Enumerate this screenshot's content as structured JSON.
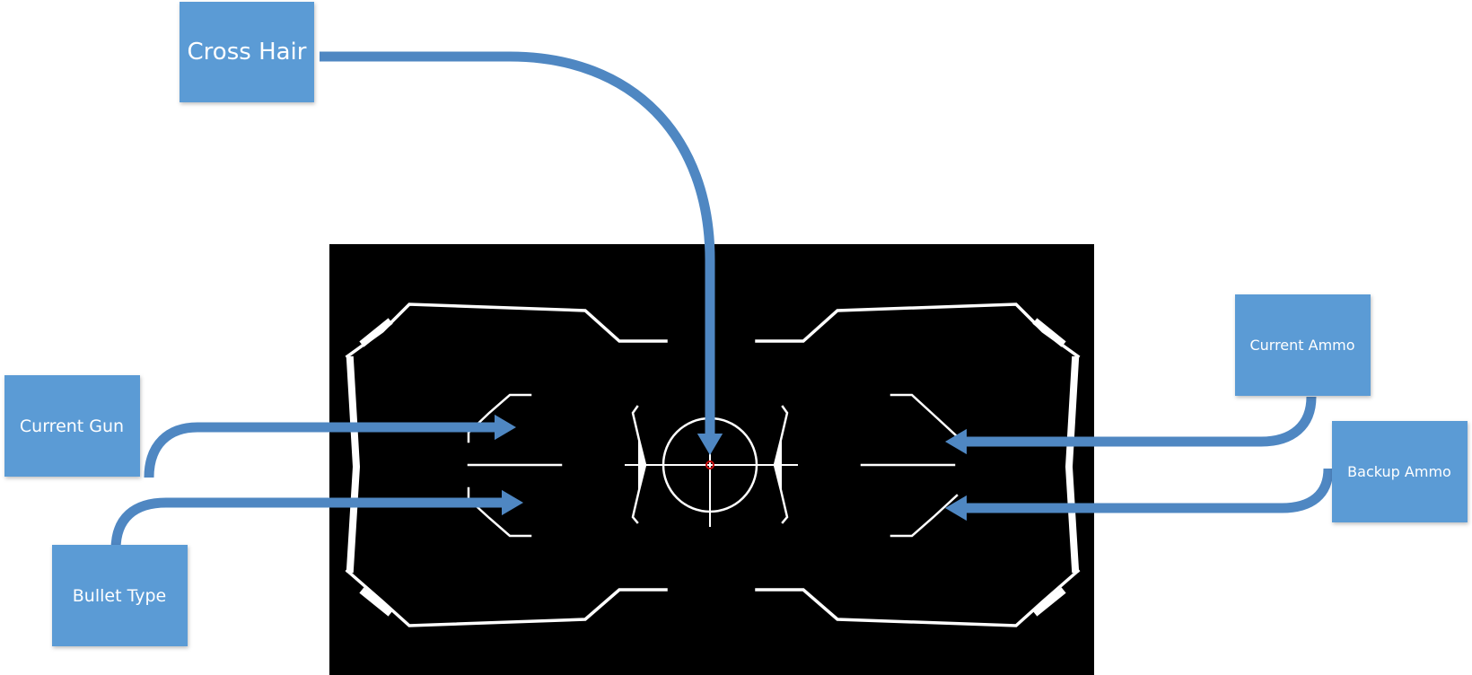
{
  "diagram": {
    "callouts": {
      "cross_hair": "Cross Hair",
      "current_gun": "Current Gun",
      "bullet_type": "Bullet Type",
      "current_ammo": "Current Ammo",
      "backup_ammo": "Backup Ammo"
    },
    "colors": {
      "callout_fill": "#5b9bd5",
      "arrow_fill": "#4f87c2",
      "hud_background": "#000000",
      "hud_lines": "#ffffff",
      "crosshair_dot": "#cc1111"
    }
  }
}
